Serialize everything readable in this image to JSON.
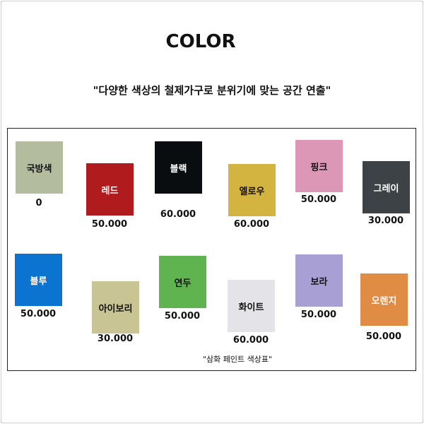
{
  "title": "COLOR",
  "subtitle": "\"다양한 색상의 철제가구로 분위기에 맞는 공간 연출\"",
  "swatches": [
    {
      "name": "국방색",
      "price": "0",
      "color": "#b4bca0",
      "text_color": "#111111"
    },
    {
      "name": "레드",
      "price": "50.000",
      "color": "#b01c1e",
      "text_color": "#ffffff"
    },
    {
      "name": "블랙",
      "price": "60.000",
      "color": "#0a0d10",
      "text_color": "#ffffff"
    },
    {
      "name": "엘로우",
      "price": "60.000",
      "color": "#d4b440",
      "text_color": "#111111"
    },
    {
      "name": "핑크",
      "price": "50.000",
      "color": "#dc96b6",
      "text_color": "#111111"
    },
    {
      "name": "그레이",
      "price": "30.000",
      "color": "#3c4246",
      "text_color": "#ffffff"
    },
    {
      "name": "블루",
      "price": "50.000",
      "color": "#0a74d0",
      "text_color": "#ffffff"
    },
    {
      "name": "아이보리",
      "price": "30.000",
      "color": "#c8c494",
      "text_color": "#111111"
    },
    {
      "name": "연두",
      "price": "50.000",
      "color": "#60b450",
      "text_color": "#111111"
    },
    {
      "name": "화이트",
      "price": "60.000",
      "color": "#e4e4e8",
      "text_color": "#111111"
    },
    {
      "name": "보라",
      "price": "50.000",
      "color": "#a8a0d4",
      "text_color": "#111111"
    },
    {
      "name": "오렌지",
      "price": "50.000",
      "color": "#e08c44",
      "text_color": "#ffffff"
    }
  ],
  "caption": "\"삼화 페인트 색상표\""
}
